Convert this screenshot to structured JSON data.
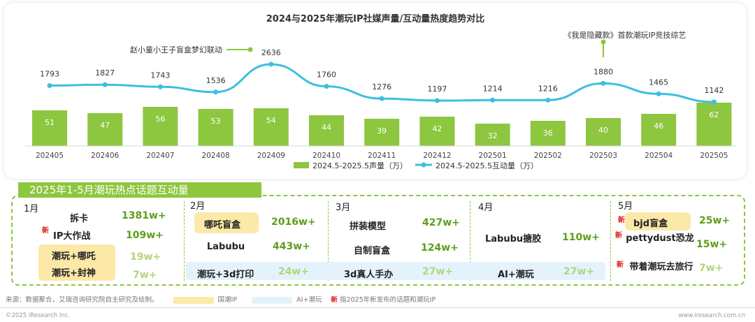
{
  "chart_data": {
    "type": "bar+line",
    "title": "2024与2025年潮玩IP社媒声量/互动量热度趋势对比",
    "categories": [
      "202405",
      "202406",
      "202407",
      "202408",
      "202409",
      "202410",
      "202411",
      "202412",
      "202501",
      "202502",
      "202503",
      "202504",
      "202505"
    ],
    "series": [
      {
        "name": "2024.5-2025.5声量（万）",
        "type": "bar",
        "color": "#8dc63f",
        "values": [
          51,
          47,
          56,
          53,
          54,
          44,
          39,
          42,
          32,
          36,
          40,
          46,
          62
        ]
      },
      {
        "name": "2024.5-2025.5互动量（万）",
        "type": "line",
        "color": "#3dbfe0",
        "values": [
          1793,
          1827,
          1743,
          1536,
          2636,
          1760,
          1276,
          1197,
          1214,
          1216,
          1880,
          1465,
          1142
        ]
      }
    ],
    "annotations": [
      {
        "text": "赵小童小王子盲盒梦幻联动",
        "category": "202409"
      },
      {
        "text": "《我是隐藏款》首款潮玩IP竞技综艺",
        "category": "202503"
      }
    ],
    "legend_position": "bottom"
  },
  "topics": {
    "banner": "2025年1-5月潮玩热点话题互动量",
    "months": [
      {
        "label": "1月",
        "items": [
          {
            "name": "拆卡",
            "value": "1381w+"
          },
          {
            "name": "IP大作战",
            "value": "109w+",
            "new": "新"
          },
          {
            "name": "潮玩+哪吒",
            "value": "19w+"
          },
          {
            "name": "潮玩+封神",
            "value": "7w+"
          }
        ]
      },
      {
        "label": "2月",
        "items": [
          {
            "name": "哪吒盲盒",
            "value": "2016w+"
          },
          {
            "name": "Labubu",
            "value": "443w+"
          },
          {
            "name": "潮玩+3d打印",
            "value": "24w+"
          }
        ]
      },
      {
        "label": "3月",
        "items": [
          {
            "name": "拼装模型",
            "value": "427w+"
          },
          {
            "name": "自制盲盒",
            "value": "124w+"
          },
          {
            "name": "3d真人手办",
            "value": "27w+"
          }
        ]
      },
      {
        "label": "4月",
        "items": [
          {
            "name": "Labubu搪胶",
            "value": "110w+"
          },
          {
            "name": "AI+潮玩",
            "value": "27w+"
          }
        ]
      },
      {
        "label": "5月",
        "items": [
          {
            "name": "bjd盲盒",
            "value": "25w+",
            "new": "新"
          },
          {
            "name": "pettydust恐龙",
            "value": "15w+",
            "new": "新"
          },
          {
            "name": "带着潮玩去旅行",
            "value": "7w+",
            "new": "新"
          }
        ]
      }
    ]
  },
  "footer": {
    "source": "来源：数据聚合，艾瑞咨询研究院自主研究及绘制。",
    "legend_guochao": "国潮IP",
    "legend_ai": "AI+潮玩",
    "legend_new_mark": "新",
    "legend_new": "指2025年新发布的话题和潮玩IP",
    "copyright": "©2025 iResearch Inc.",
    "site": "www.iresearch.com.cn"
  },
  "colors": {
    "accent": "#8dc63f",
    "line": "#3dbfe0",
    "guochao": "#fce9a8",
    "ai": "#e4f3fb",
    "new": "#e0201b"
  }
}
